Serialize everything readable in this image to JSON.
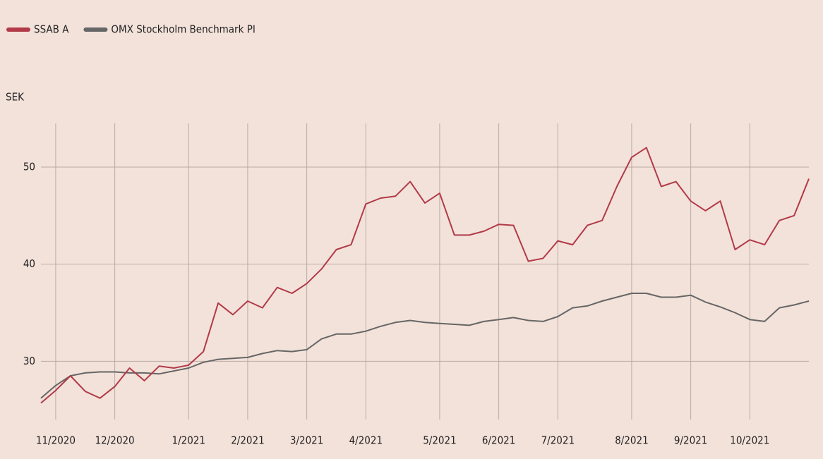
{
  "chart_data": {
    "type": "line",
    "legend": "top-left",
    "y_label": "SEK",
    "categories": [
      null,
      "11/2020",
      null,
      null,
      null,
      "12/2020",
      null,
      null,
      null,
      null,
      "1/2021",
      null,
      null,
      null,
      "2/2021",
      null,
      null,
      null,
      "3/2021",
      null,
      null,
      null,
      "4/2021",
      null,
      null,
      null,
      null,
      "5/2021",
      null,
      null,
      null,
      "6/2021",
      null,
      null,
      null,
      "7/2021",
      null,
      null,
      null,
      null,
      "8/2021",
      null,
      null,
      null,
      "9/2021",
      null,
      null,
      null,
      "10/2021",
      null,
      null,
      null,
      null
    ],
    "series": [
      {
        "name": "SSAB A",
        "color": "#b23a48",
        "values": [
          25.7,
          27.0,
          28.5,
          26.9,
          26.2,
          27.4,
          29.3,
          28.0,
          29.5,
          29.3,
          29.6,
          31.0,
          36.0,
          34.8,
          36.2,
          35.5,
          37.6,
          37.0,
          38.0,
          39.5,
          41.5,
          42.0,
          46.2,
          46.8,
          47.0,
          48.5,
          46.3,
          47.3,
          43.0,
          43.0,
          43.4,
          44.1,
          44.0,
          40.3,
          40.6,
          42.4,
          42.0,
          44.0,
          44.5,
          48.0,
          51.0,
          52.0,
          48.0,
          48.5,
          46.5,
          45.5,
          46.5,
          41.5,
          42.5,
          42.0,
          44.5,
          45.0,
          48.8
        ]
      },
      {
        "name": "OMX Stockholm Benchmark PI",
        "color": "#666666",
        "values": [
          26.2,
          27.5,
          28.5,
          28.8,
          28.9,
          28.9,
          28.8,
          28.8,
          28.7,
          29.0,
          29.3,
          29.9,
          30.2,
          30.3,
          30.4,
          30.8,
          31.1,
          31.0,
          31.2,
          32.3,
          32.8,
          32.8,
          33.1,
          33.6,
          34.0,
          34.2,
          34.0,
          33.9,
          33.8,
          33.7,
          34.1,
          34.3,
          34.5,
          34.2,
          34.1,
          34.6,
          35.5,
          35.7,
          36.2,
          36.6,
          37.0,
          37.0,
          36.6,
          36.6,
          36.8,
          36.1,
          35.6,
          35.0,
          34.3,
          34.1,
          35.5,
          35.8,
          36.2
        ]
      }
    ],
    "ylim": [
      24,
      54.5
    ],
    "yticks": [
      30,
      40,
      50
    ],
    "grid": true
  }
}
